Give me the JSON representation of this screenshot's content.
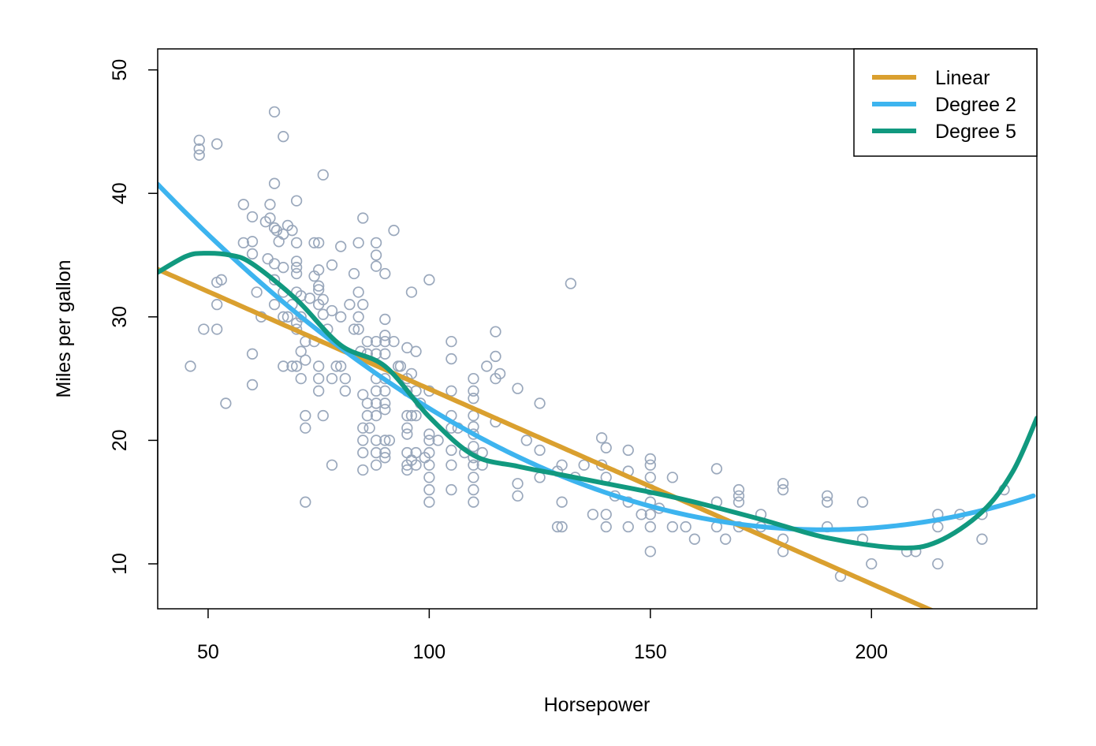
{
  "chart_data": {
    "type": "scatter",
    "title": "",
    "xlabel": "Horsepower",
    "ylabel": "Miles per gallon",
    "xlim": [
      38.6,
      237.4
    ],
    "ylim": [
      6.36,
      51.7
    ],
    "xticks": [
      50,
      100,
      150,
      200
    ],
    "yticks": [
      10,
      20,
      30,
      40,
      50
    ],
    "grid": false,
    "legend_position": "top-right",
    "point_color": "#9aa8bc",
    "points": [
      [
        46,
        26
      ],
      [
        48,
        44.3
      ],
      [
        48,
        43.6
      ],
      [
        48,
        43.1
      ],
      [
        52,
        44
      ],
      [
        49,
        29
      ],
      [
        52,
        32.8
      ],
      [
        53,
        33
      ],
      [
        52,
        31
      ],
      [
        52,
        29
      ],
      [
        54,
        23
      ],
      [
        58,
        39.1
      ],
      [
        58,
        36
      ],
      [
        60,
        38.1
      ],
      [
        60,
        36.1
      ],
      [
        60,
        35.1
      ],
      [
        60,
        27
      ],
      [
        60,
        24.5
      ],
      [
        61,
        32
      ],
      [
        62,
        30
      ],
      [
        63,
        37.7
      ],
      [
        64,
        38
      ],
      [
        63.5,
        34.7
      ],
      [
        65,
        46.6
      ],
      [
        67,
        44.6
      ],
      [
        65,
        40.8
      ],
      [
        64,
        39.1
      ],
      [
        65,
        37.2
      ],
      [
        65.5,
        37
      ],
      [
        66,
        36.1
      ],
      [
        67,
        36.7
      ],
      [
        65,
        34.3
      ],
      [
        67,
        34
      ],
      [
        65,
        33
      ],
      [
        65,
        31
      ],
      [
        67,
        32
      ],
      [
        67,
        30
      ],
      [
        67,
        26
      ],
      [
        69,
        26
      ],
      [
        70,
        26
      ],
      [
        68,
        37.4
      ],
      [
        69,
        37
      ],
      [
        70,
        39.4
      ],
      [
        70,
        36
      ],
      [
        70,
        34.5
      ],
      [
        70,
        34
      ],
      [
        70,
        33.5
      ],
      [
        70,
        32
      ],
      [
        71,
        31.7
      ],
      [
        70,
        29
      ],
      [
        71,
        27.2
      ],
      [
        71,
        25
      ],
      [
        72,
        26.5
      ],
      [
        72,
        22
      ],
      [
        72,
        21
      ],
      [
        72,
        15
      ],
      [
        74,
        36
      ],
      [
        75,
        36
      ],
      [
        74,
        33.3
      ],
      [
        75,
        33.8
      ],
      [
        75,
        32.5
      ],
      [
        75,
        32.2
      ],
      [
        75,
        31
      ],
      [
        76,
        31.4
      ],
      [
        76,
        41.5
      ],
      [
        76,
        30.2
      ],
      [
        75,
        26
      ],
      [
        75,
        25
      ],
      [
        75,
        24
      ],
      [
        76,
        22
      ],
      [
        77,
        29
      ],
      [
        78,
        34.2
      ],
      [
        78,
        30.5
      ],
      [
        78,
        25
      ],
      [
        78,
        18
      ],
      [
        79,
        26
      ],
      [
        80,
        26
      ],
      [
        80,
        35.7
      ],
      [
        80,
        30
      ],
      [
        81,
        25
      ],
      [
        81,
        24
      ],
      [
        82,
        31
      ],
      [
        83,
        33.5
      ],
      [
        83,
        29
      ],
      [
        84,
        36
      ],
      [
        84,
        32
      ],
      [
        84,
        30
      ],
      [
        84,
        29
      ],
      [
        84.5,
        27.2
      ],
      [
        85,
        38
      ],
      [
        85,
        31
      ],
      [
        85,
        23.7
      ],
      [
        85,
        21
      ],
      [
        85,
        20
      ],
      [
        85,
        19
      ],
      [
        85,
        17.6
      ],
      [
        86,
        28
      ],
      [
        86,
        27
      ],
      [
        86,
        23
      ],
      [
        86,
        22
      ],
      [
        86.5,
        21
      ],
      [
        88,
        36
      ],
      [
        88,
        35
      ],
      [
        88,
        34.1
      ],
      [
        88,
        28
      ],
      [
        88,
        27
      ],
      [
        88,
        25
      ],
      [
        88,
        24
      ],
      [
        88,
        23
      ],
      [
        88,
        22
      ],
      [
        88,
        20
      ],
      [
        88,
        19
      ],
      [
        88,
        18
      ],
      [
        90,
        33.5
      ],
      [
        90,
        29.8
      ],
      [
        90,
        28.5
      ],
      [
        90,
        28
      ],
      [
        90,
        27
      ],
      [
        90,
        25
      ],
      [
        90,
        24
      ],
      [
        90,
        23
      ],
      [
        90,
        22.5
      ],
      [
        90,
        20
      ],
      [
        90,
        19
      ],
      [
        90,
        18.6
      ],
      [
        91,
        20
      ],
      [
        92,
        37
      ],
      [
        92,
        28
      ],
      [
        93,
        26
      ],
      [
        93.5,
        26
      ],
      [
        95,
        22
      ],
      [
        95,
        21
      ],
      [
        96,
        22
      ],
      [
        96,
        18.4
      ],
      [
        95,
        27.5
      ],
      [
        95,
        25
      ],
      [
        95,
        24
      ],
      [
        96,
        25.4
      ],
      [
        96,
        32
      ],
      [
        95,
        20.5
      ],
      [
        95,
        19
      ],
      [
        95,
        18
      ],
      [
        95,
        17.6
      ],
      [
        97,
        27.2
      ],
      [
        97,
        24
      ],
      [
        97,
        22
      ],
      [
        97,
        19
      ],
      [
        97,
        18
      ],
      [
        98,
        23
      ],
      [
        99,
        18.6
      ],
      [
        100,
        33
      ],
      [
        100,
        24
      ],
      [
        100,
        20.5
      ],
      [
        100,
        20
      ],
      [
        100,
        19
      ],
      [
        100,
        18
      ],
      [
        100,
        17
      ],
      [
        100,
        16
      ],
      [
        100,
        15
      ],
      [
        102,
        20
      ],
      [
        105,
        28
      ],
      [
        105,
        26.6
      ],
      [
        105,
        24
      ],
      [
        105,
        22
      ],
      [
        105,
        21
      ],
      [
        105,
        19.2
      ],
      [
        105,
        18
      ],
      [
        105,
        16
      ],
      [
        106.5,
        21
      ],
      [
        108,
        19
      ],
      [
        110,
        25
      ],
      [
        110,
        24
      ],
      [
        110,
        23.4
      ],
      [
        110,
        22
      ],
      [
        110,
        21.1
      ],
      [
        110,
        20.5
      ],
      [
        110,
        19.5
      ],
      [
        110,
        18.6
      ],
      [
        110,
        18
      ],
      [
        110,
        17
      ],
      [
        110,
        16
      ],
      [
        110,
        15
      ],
      [
        112,
        19
      ],
      [
        112,
        18
      ],
      [
        113,
        26
      ],
      [
        115,
        28.8
      ],
      [
        115,
        26.8
      ],
      [
        115,
        25
      ],
      [
        115,
        21.5
      ],
      [
        116,
        25.4
      ],
      [
        120,
        24.2
      ],
      [
        120,
        16.5
      ],
      [
        120,
        15.5
      ],
      [
        122,
        20
      ],
      [
        125,
        23
      ],
      [
        125,
        19.2
      ],
      [
        125,
        17
      ],
      [
        129,
        17.5
      ],
      [
        130,
        18
      ],
      [
        129,
        13
      ],
      [
        130,
        13
      ],
      [
        130,
        15
      ],
      [
        132,
        32.7
      ],
      [
        133,
        17
      ],
      [
        135,
        18
      ],
      [
        137,
        14
      ],
      [
        139,
        20.2
      ],
      [
        139,
        18
      ],
      [
        140,
        17
      ],
      [
        140,
        19.4
      ],
      [
        140,
        14
      ],
      [
        140,
        13
      ],
      [
        142,
        15.5
      ],
      [
        145,
        19.2
      ],
      [
        145,
        17.5
      ],
      [
        145,
        15
      ],
      [
        145,
        13
      ],
      [
        148,
        14
      ],
      [
        150,
        18.5
      ],
      [
        150,
        18
      ],
      [
        150,
        17
      ],
      [
        150,
        16
      ],
      [
        150,
        15
      ],
      [
        150,
        14
      ],
      [
        150,
        13
      ],
      [
        150,
        11
      ],
      [
        152,
        14.5
      ],
      [
        155,
        17
      ],
      [
        155,
        13
      ],
      [
        158,
        13
      ],
      [
        160,
        12
      ],
      [
        165,
        17.7
      ],
      [
        165,
        15
      ],
      [
        165,
        13
      ],
      [
        167,
        12
      ],
      [
        170,
        16
      ],
      [
        170,
        15.5
      ],
      [
        170,
        15
      ],
      [
        170,
        13
      ],
      [
        175,
        14
      ],
      [
        175,
        13
      ],
      [
        180,
        16.5
      ],
      [
        180,
        16
      ],
      [
        180,
        12
      ],
      [
        180,
        11
      ],
      [
        190,
        15.5
      ],
      [
        190,
        15
      ],
      [
        190,
        13
      ],
      [
        193,
        9
      ],
      [
        198,
        15
      ],
      [
        198,
        12
      ],
      [
        200,
        10
      ],
      [
        208,
        11
      ],
      [
        210,
        11
      ],
      [
        215,
        14
      ],
      [
        215,
        13
      ],
      [
        215,
        10
      ],
      [
        220,
        14
      ],
      [
        225,
        14
      ],
      [
        225,
        12
      ],
      [
        230,
        16
      ],
      [
        70,
        29.5
      ],
      [
        72,
        28
      ],
      [
        68,
        30
      ],
      [
        71,
        30
      ],
      [
        69,
        31
      ],
      [
        73,
        31.5
      ],
      [
        74,
        28
      ]
    ],
    "series": [
      {
        "name": "Linear",
        "color": "#daa02f",
        "intercept": 39.94,
        "coefficients": [
          -0.1578
        ]
      },
      {
        "name": "Degree 2",
        "color": "#3db4ef",
        "intercept": 56.9,
        "coefficients": [
          -0.4662,
          0.001231
        ]
      },
      {
        "name": "Degree 5",
        "color": "#11997f",
        "x": [
          38.6,
          45,
          49,
          55,
          60,
          70,
          80,
          90,
          100,
          110,
          120,
          130,
          140,
          150,
          160,
          175,
          190,
          206,
          215,
          225,
          232,
          237.4
        ],
        "y": [
          33.6,
          34.9,
          35.15,
          35.0,
          34.3,
          31.4,
          27.7,
          26.0,
          21.9,
          18.8,
          17.9,
          17.2,
          16.5,
          15.8,
          15.0,
          13.6,
          12.1,
          11.3,
          11.8,
          14.2,
          17.5,
          21.8
        ]
      }
    ]
  }
}
